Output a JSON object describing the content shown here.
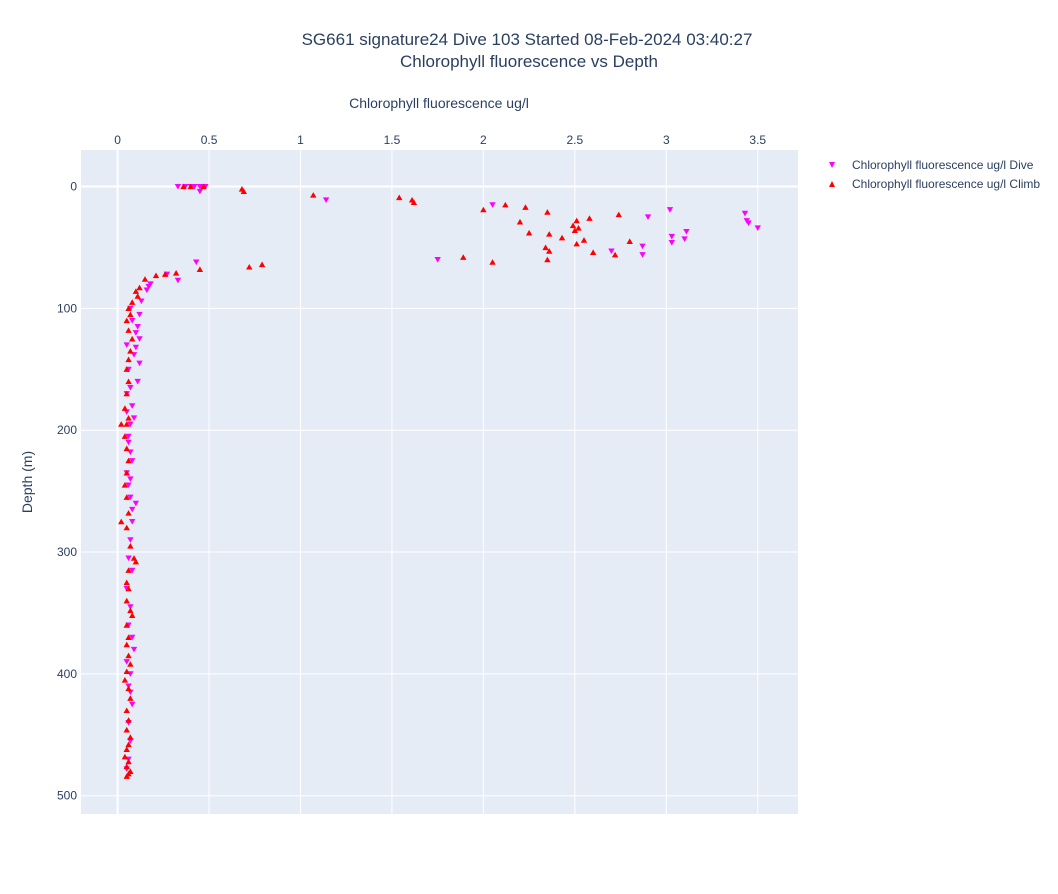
{
  "chart_data": {
    "type": "scatter",
    "title_line1": "SG661 signature24 Dive 103 Started 08-Feb-2024 03:40:27",
    "title_line2": "Chlorophyll fluorescence vs Depth",
    "xlabel": "Chlorophyll fluorescence ug/l",
    "ylabel": "Depth (m)",
    "xlim": [
      -0.2,
      3.72
    ],
    "ylim": [
      515,
      -30
    ],
    "x_axis_position": "top",
    "y_reversed": true,
    "grid": true,
    "legend_position": "right",
    "x_ticks": [
      0,
      0.5,
      1,
      1.5,
      2,
      2.5,
      3,
      3.5
    ],
    "x_tick_labels": [
      "0",
      "0.5",
      "1",
      "1.5",
      "2",
      "2.5",
      "3",
      "3.5"
    ],
    "y_ticks": [
      0,
      100,
      200,
      300,
      400,
      500
    ],
    "y_tick_labels": [
      "0",
      "100",
      "200",
      "300",
      "400",
      "500"
    ],
    "series": [
      {
        "name": "Chlorophyll fluorescence ug/l Dive",
        "marker": "triangle-down",
        "color": "#ff00ff",
        "x": [
          0.33,
          0.37,
          0.4,
          0.42,
          0.45,
          0.46,
          0.48,
          0.45,
          1.14,
          2.05,
          3.02,
          2.9,
          3.43,
          3.44,
          3.45,
          3.5,
          3.11,
          3.1,
          3.03,
          3.03,
          2.87,
          2.7,
          2.87,
          1.75,
          0.43,
          0.33,
          0.27,
          0.18,
          0.17,
          0.16,
          0.13,
          0.12,
          0.11,
          0.1,
          0.12,
          0.1,
          0.09,
          0.12,
          0.11,
          0.05,
          0.08,
          0.09,
          0.07,
          0.06,
          0.08,
          0.07,
          0.1,
          0.08,
          0.07,
          0.06,
          0.08,
          0.05,
          0.07,
          0.06,
          0.08,
          0.09,
          0.05,
          0.07,
          0.06,
          0.07,
          0.08,
          0.06,
          0.07,
          0.06,
          0.05,
          0.08,
          0.07,
          0.06,
          0.05,
          0.07,
          0.06,
          0.05,
          0.07,
          0.06,
          0.05,
          0.08,
          0.07
        ],
        "y": [
          0,
          0,
          0,
          0,
          0,
          0,
          0,
          4,
          11,
          15,
          19,
          25,
          22,
          28,
          30,
          34,
          37,
          43,
          41,
          46,
          49,
          53,
          56,
          60,
          62,
          77,
          72,
          80,
          82,
          85,
          94,
          105,
          115,
          120,
          125,
          132,
          138,
          145,
          160,
          170,
          180,
          190,
          195,
          210,
          225,
          240,
          260,
          275,
          290,
          305,
          315,
          330,
          345,
          360,
          370,
          380,
          390,
          400,
          410,
          415,
          425,
          440,
          455,
          470,
          478,
          265,
          255,
          245,
          235,
          218,
          205,
          185,
          165,
          150,
          130,
          110,
          100
        ]
      },
      {
        "name": "Chlorophyll fluorescence ug/l Climb",
        "marker": "triangle-up",
        "color": "#ff0000",
        "x": [
          0.36,
          0.4,
          0.47,
          0.68,
          0.69,
          1.07,
          1.54,
          1.61,
          1.62,
          2.0,
          2.12,
          2.23,
          2.2,
          2.35,
          2.25,
          2.49,
          2.52,
          2.58,
          2.74,
          2.51,
          2.5,
          2.36,
          2.43,
          2.55,
          2.51,
          2.8,
          2.34,
          2.36,
          2.6,
          2.72,
          2.35,
          2.05,
          1.89,
          0.79,
          0.72,
          0.45,
          0.32,
          0.26,
          0.21,
          0.15,
          0.12,
          0.1,
          0.11,
          0.08,
          0.06,
          0.07,
          0.05,
          0.06,
          0.08,
          0.07,
          0.06,
          0.05,
          0.06,
          0.05,
          0.04,
          0.06,
          0.05,
          0.04,
          0.02,
          0.05,
          0.06,
          0.05,
          0.04,
          0.05,
          0.06,
          0.05,
          0.02,
          0.07,
          0.09,
          0.1,
          0.06,
          0.05,
          0.06,
          0.05,
          0.07,
          0.08,
          0.05,
          0.06,
          0.05,
          0.06,
          0.07,
          0.05,
          0.04,
          0.06,
          0.07,
          0.05,
          0.06,
          0.05,
          0.07,
          0.06,
          0.05,
          0.04,
          0.06,
          0.05,
          0.07,
          0.06,
          0.05
        ],
        "y": [
          0,
          0,
          0,
          2,
          4,
          7,
          9,
          11,
          13,
          19,
          15,
          17,
          29,
          21,
          38,
          32,
          34,
          26,
          23,
          28,
          36,
          39,
          42,
          44,
          47,
          45,
          50,
          53,
          54,
          56,
          60,
          62,
          58,
          64,
          66,
          68,
          71,
          72,
          73,
          76,
          83,
          86,
          90,
          95,
          100,
          105,
          110,
          118,
          125,
          135,
          142,
          150,
          160,
          170,
          182,
          190,
          195,
          205,
          195,
          215,
          225,
          235,
          245,
          255,
          268,
          280,
          275,
          295,
          305,
          308,
          315,
          325,
          330,
          340,
          348,
          352,
          360,
          370,
          376,
          385,
          392,
          398,
          405,
          412,
          420,
          430,
          438,
          446,
          452,
          458,
          462,
          468,
          472,
          476,
          480,
          482,
          484
        ]
      }
    ]
  }
}
